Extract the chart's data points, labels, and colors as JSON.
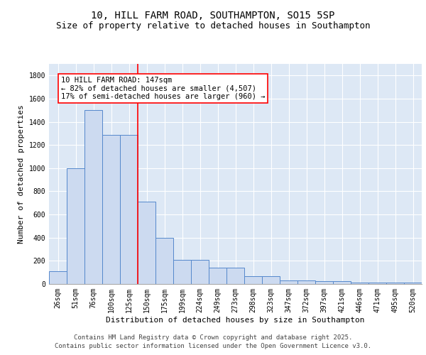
{
  "title": "10, HILL FARM ROAD, SOUTHAMPTON, SO15 5SP",
  "subtitle": "Size of property relative to detached houses in Southampton",
  "xlabel": "Distribution of detached houses by size in Southampton",
  "ylabel": "Number of detached properties",
  "categories": [
    "26sqm",
    "51sqm",
    "76sqm",
    "100sqm",
    "125sqm",
    "150sqm",
    "175sqm",
    "199sqm",
    "224sqm",
    "249sqm",
    "273sqm",
    "298sqm",
    "323sqm",
    "347sqm",
    "372sqm",
    "397sqm",
    "421sqm",
    "446sqm",
    "471sqm",
    "495sqm",
    "520sqm"
  ],
  "bar_heights": [
    110,
    1000,
    1500,
    1290,
    1290,
    710,
    400,
    210,
    210,
    140,
    140,
    65,
    65,
    30,
    30,
    22,
    22,
    10,
    10,
    10,
    10
  ],
  "bar_color": "#ccdaf0",
  "bar_edgecolor": "#5588cc",
  "background_color": "#dde8f5",
  "grid_color": "#ffffff",
  "red_line_x": 4.5,
  "annotation_text": "10 HILL FARM ROAD: 147sqm\n← 82% of detached houses are smaller (4,507)\n17% of semi-detached houses are larger (960) →",
  "ylim": [
    0,
    1900
  ],
  "yticks": [
    0,
    200,
    400,
    600,
    800,
    1000,
    1200,
    1400,
    1600,
    1800
  ],
  "footer_line1": "Contains HM Land Registry data © Crown copyright and database right 2025.",
  "footer_line2": "Contains public sector information licensed under the Open Government Licence v3.0.",
  "title_fontsize": 10,
  "subtitle_fontsize": 9,
  "axis_label_fontsize": 8,
  "tick_fontsize": 7,
  "footer_fontsize": 6.5,
  "ann_fontsize": 7.5
}
